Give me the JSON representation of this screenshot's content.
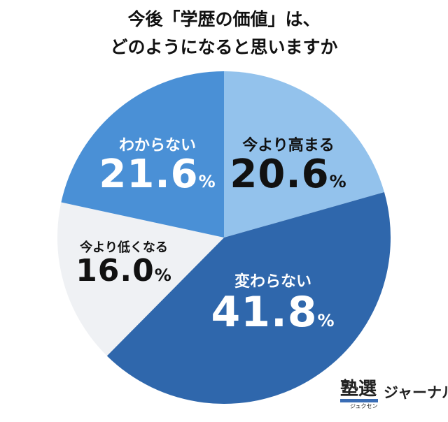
{
  "title_lines": [
    "今後「学歴の価値」は、",
    "どのようになると思いますか"
  ],
  "chart_data": {
    "type": "pie",
    "title": "今後「学歴の価値」は、どのようになると思いますか",
    "start": "12 o'clock, clockwise",
    "categories": [
      "今より高まる",
      "変わらない",
      "今より低くなる",
      "わからない"
    ],
    "values": [
      20.6,
      41.8,
      16.0,
      21.6
    ],
    "unit": "%",
    "colors": [
      "#93c2ec",
      "#2f67ac",
      "#eff1f4",
      "#4a90d6"
    ],
    "label_colors": [
      "#111111",
      "#ffffff",
      "#111111",
      "#ffffff"
    ],
    "legend": "none"
  },
  "logo": {
    "kanji": "塾選",
    "kana": "ジュクセン",
    "text": "ジャーナル"
  }
}
